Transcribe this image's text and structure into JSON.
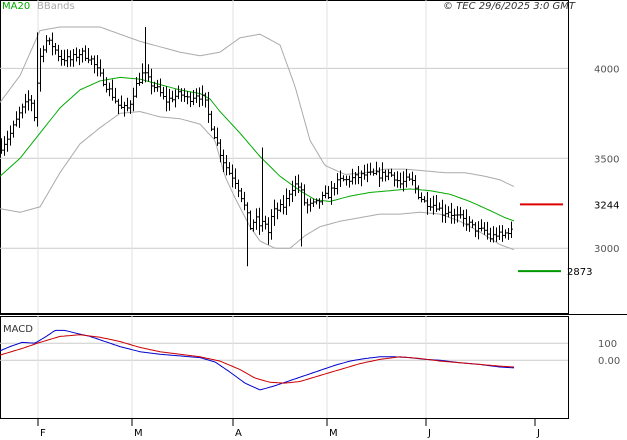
{
  "header": {
    "copyright": "© TEC 29/6/2025 3:0 GMT",
    "legend": [
      {
        "label": "MA20",
        "color": "#00aa00"
      },
      {
        "label": "BBands",
        "color": "#aaaaaa"
      }
    ]
  },
  "chart_data": [
    {
      "type": "ohlc",
      "ylim": [
        2640,
        4380
      ],
      "y_ticks": [
        {
          "value": 3000,
          "label": "3000"
        },
        {
          "value": 3500,
          "label": "3500"
        },
        {
          "value": 4000,
          "label": "4000"
        }
      ],
      "x_ticks": [
        "F",
        "M",
        "A",
        "M",
        "J",
        "J"
      ],
      "grid": true,
      "levels": [
        {
          "value": 3244,
          "label": "3244",
          "color": "#dd0000"
        },
        {
          "value": 2873,
          "label": "2873",
          "color": "#009900"
        }
      ],
      "series": [
        {
          "name": "MA20",
          "color": "#00aa00"
        },
        {
          "name": "BBands",
          "color": "#aaaaaa"
        }
      ],
      "price_anchors": [
        [
          0,
          3560
        ],
        [
          10,
          3640
        ],
        [
          20,
          3760
        ],
        [
          30,
          3840
        ],
        [
          35,
          3710
        ],
        [
          38,
          4030
        ],
        [
          45,
          4160
        ],
        [
          52,
          4130
        ],
        [
          60,
          4060
        ],
        [
          70,
          4050
        ],
        [
          80,
          4090
        ],
        [
          90,
          4060
        ],
        [
          100,
          3960
        ],
        [
          110,
          3870
        ],
        [
          120,
          3780
        ],
        [
          128,
          3780
        ],
        [
          135,
          3900
        ],
        [
          143,
          3980
        ],
        [
          150,
          3920
        ],
        [
          158,
          3880
        ],
        [
          165,
          3820
        ],
        [
          172,
          3840
        ],
        [
          180,
          3860
        ],
        [
          188,
          3830
        ],
        [
          196,
          3860
        ],
        [
          204,
          3830
        ],
        [
          210,
          3700
        ],
        [
          216,
          3600
        ],
        [
          222,
          3500
        ],
        [
          228,
          3430
        ],
        [
          234,
          3390
        ],
        [
          240,
          3310
        ],
        [
          246,
          3200
        ],
        [
          250,
          3120
        ],
        [
          255,
          3170
        ],
        [
          260,
          3120
        ],
        [
          264,
          3160
        ],
        [
          268,
          3090
        ],
        [
          272,
          3200
        ],
        [
          278,
          3220
        ],
        [
          284,
          3240
        ],
        [
          290,
          3330
        ],
        [
          296,
          3360
        ],
        [
          300,
          3330
        ],
        [
          305,
          3240
        ],
        [
          310,
          3240
        ],
        [
          316,
          3250
        ],
        [
          322,
          3280
        ],
        [
          328,
          3300
        ],
        [
          334,
          3350
        ],
        [
          340,
          3380
        ],
        [
          346,
          3380
        ],
        [
          352,
          3390
        ],
        [
          358,
          3400
        ],
        [
          364,
          3410
        ],
        [
          370,
          3410
        ],
        [
          376,
          3410
        ],
        [
          382,
          3410
        ],
        [
          388,
          3420
        ],
        [
          394,
          3400
        ],
        [
          400,
          3360
        ],
        [
          406,
          3380
        ],
        [
          412,
          3370
        ],
        [
          418,
          3300
        ],
        [
          424,
          3260
        ],
        [
          430,
          3250
        ],
        [
          436,
          3240
        ],
        [
          442,
          3200
        ],
        [
          448,
          3210
        ],
        [
          454,
          3180
        ],
        [
          460,
          3170
        ],
        [
          466,
          3150
        ],
        [
          472,
          3120
        ],
        [
          478,
          3100
        ],
        [
          484,
          3100
        ],
        [
          490,
          3060
        ],
        [
          496,
          3080
        ],
        [
          502,
          3070
        ],
        [
          508,
          3100
        ],
        [
          513,
          3090
        ]
      ],
      "ma20_anchors": [
        [
          0,
          3400
        ],
        [
          20,
          3500
        ],
        [
          40,
          3640
        ],
        [
          60,
          3780
        ],
        [
          80,
          3880
        ],
        [
          100,
          3930
        ],
        [
          120,
          3950
        ],
        [
          140,
          3940
        ],
        [
          160,
          3910
        ],
        [
          180,
          3880
        ],
        [
          200,
          3860
        ],
        [
          210,
          3830
        ],
        [
          220,
          3760
        ],
        [
          240,
          3640
        ],
        [
          260,
          3510
        ],
        [
          280,
          3400
        ],
        [
          300,
          3320
        ],
        [
          315,
          3270
        ],
        [
          330,
          3260
        ],
        [
          350,
          3290
        ],
        [
          370,
          3310
        ],
        [
          390,
          3320
        ],
        [
          410,
          3330
        ],
        [
          430,
          3320
        ],
        [
          450,
          3300
        ],
        [
          470,
          3260
        ],
        [
          490,
          3210
        ],
        [
          505,
          3170
        ],
        [
          515,
          3150
        ]
      ],
      "bb_upper_anchors": [
        [
          0,
          3810
        ],
        [
          20,
          3960
        ],
        [
          40,
          4210
        ],
        [
          60,
          4230
        ],
        [
          80,
          4230
        ],
        [
          100,
          4230
        ],
        [
          120,
          4190
        ],
        [
          140,
          4150
        ],
        [
          160,
          4120
        ],
        [
          180,
          4090
        ],
        [
          200,
          4070
        ],
        [
          220,
          4090
        ],
        [
          240,
          4170
        ],
        [
          260,
          4190
        ],
        [
          280,
          4130
        ],
        [
          295,
          3900
        ],
        [
          310,
          3600
        ],
        [
          325,
          3460
        ],
        [
          345,
          3410
        ],
        [
          365,
          3420
        ],
        [
          385,
          3440
        ],
        [
          405,
          3440
        ],
        [
          425,
          3430
        ],
        [
          445,
          3420
        ],
        [
          465,
          3420
        ],
        [
          485,
          3400
        ],
        [
          500,
          3380
        ],
        [
          515,
          3340
        ]
      ],
      "bb_lower_anchors": [
        [
          0,
          3220
        ],
        [
          20,
          3200
        ],
        [
          40,
          3230
        ],
        [
          60,
          3420
        ],
        [
          80,
          3580
        ],
        [
          100,
          3670
        ],
        [
          120,
          3750
        ],
        [
          140,
          3760
        ],
        [
          160,
          3730
        ],
        [
          180,
          3720
        ],
        [
          200,
          3690
        ],
        [
          215,
          3600
        ],
        [
          225,
          3400
        ],
        [
          235,
          3280
        ],
        [
          250,
          3120
        ],
        [
          260,
          3040
        ],
        [
          275,
          3000
        ],
        [
          290,
          3000
        ],
        [
          305,
          3070
        ],
        [
          320,
          3120
        ],
        [
          340,
          3150
        ],
        [
          360,
          3170
        ],
        [
          380,
          3190
        ],
        [
          400,
          3190
        ],
        [
          420,
          3200
        ],
        [
          440,
          3190
        ],
        [
          460,
          3150
        ],
        [
          480,
          3090
        ],
        [
          500,
          3020
        ],
        [
          515,
          2990
        ]
      ]
    },
    {
      "type": "line",
      "title": "MACD",
      "ylim": [
        -340,
        260
      ],
      "y_ticks": [
        {
          "value": 100,
          "label": "100"
        },
        {
          "value": 0,
          "label": "0.00"
        }
      ],
      "grid": true,
      "series": [
        {
          "name": "MACD",
          "color": "#0000cc",
          "anchors": [
            [
              0,
              55
            ],
            [
              10,
              80
            ],
            [
              22,
              105
            ],
            [
              35,
              100
            ],
            [
              45,
              135
            ],
            [
              55,
              175
            ],
            [
              65,
              175
            ],
            [
              75,
              160
            ],
            [
              90,
              140
            ],
            [
              105,
              110
            ],
            [
              120,
              80
            ],
            [
              140,
              50
            ],
            [
              160,
              35
            ],
            [
              180,
              25
            ],
            [
              200,
              15
            ],
            [
              215,
              -10
            ],
            [
              230,
              -70
            ],
            [
              245,
              -135
            ],
            [
              260,
              -175
            ],
            [
              275,
              -150
            ],
            [
              290,
              -120
            ],
            [
              305,
              -90
            ],
            [
              320,
              -60
            ],
            [
              335,
              -30
            ],
            [
              350,
              -5
            ],
            [
              365,
              10
            ],
            [
              380,
              20
            ],
            [
              395,
              20
            ],
            [
              410,
              15
            ],
            [
              425,
              5
            ],
            [
              440,
              0
            ],
            [
              460,
              -15
            ],
            [
              480,
              -25
            ],
            [
              500,
              -40
            ],
            [
              514,
              -45
            ]
          ]
        },
        {
          "name": "Signal",
          "color": "#cc0000",
          "anchors": [
            [
              0,
              30
            ],
            [
              20,
              65
            ],
            [
              40,
              105
            ],
            [
              60,
              140
            ],
            [
              80,
              150
            ],
            [
              100,
              135
            ],
            [
              120,
              110
            ],
            [
              140,
              75
            ],
            [
              160,
              50
            ],
            [
              180,
              35
            ],
            [
              200,
              20
            ],
            [
              220,
              -5
            ],
            [
              240,
              -55
            ],
            [
              255,
              -105
            ],
            [
              270,
              -130
            ],
            [
              285,
              -135
            ],
            [
              300,
              -125
            ],
            [
              320,
              -90
            ],
            [
              340,
              -55
            ],
            [
              360,
              -20
            ],
            [
              380,
              5
            ],
            [
              400,
              20
            ],
            [
              420,
              10
            ],
            [
              440,
              -5
            ],
            [
              460,
              -15
            ],
            [
              480,
              -25
            ],
            [
              500,
              -35
            ],
            [
              514,
              -40
            ]
          ]
        }
      ]
    }
  ]
}
